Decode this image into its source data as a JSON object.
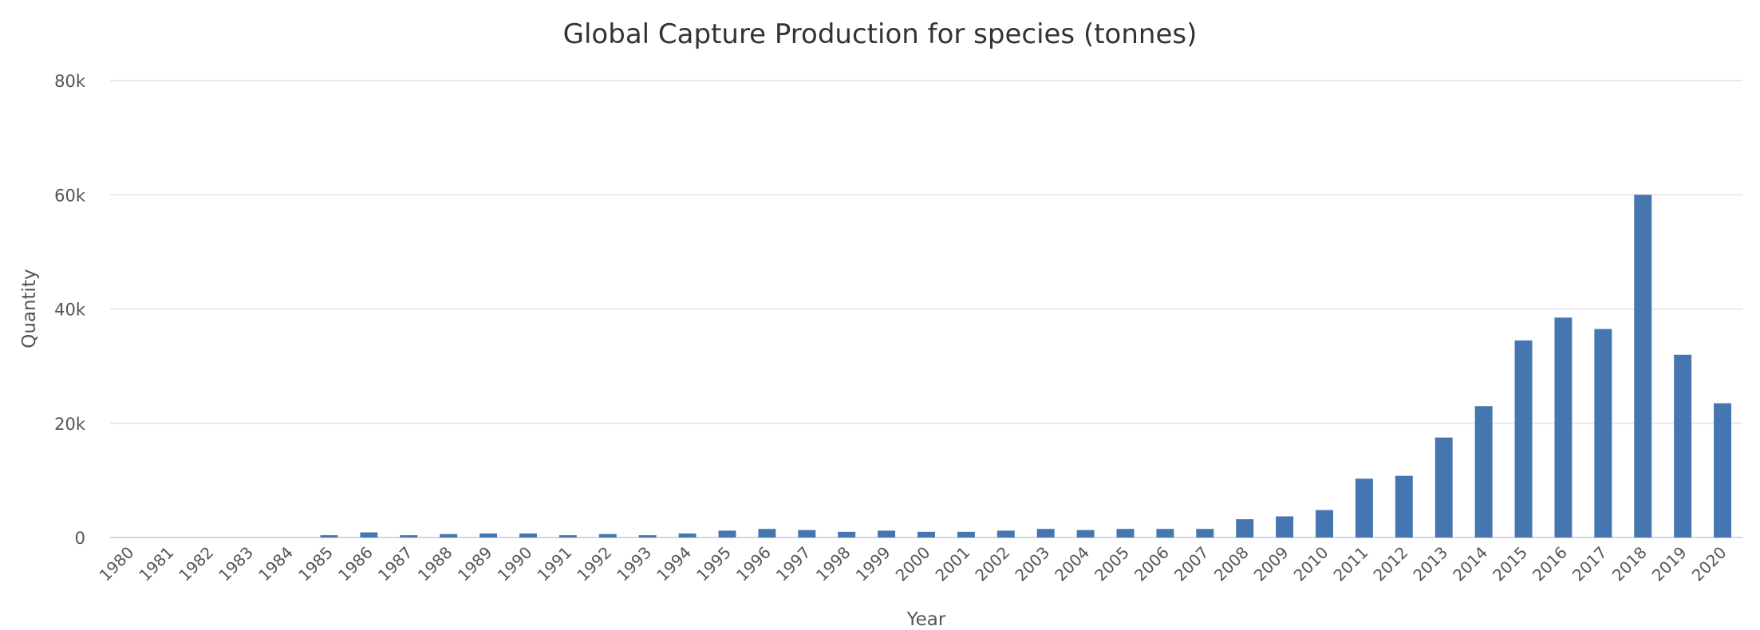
{
  "chart_data": {
    "type": "bar",
    "title": "Global Capture Production for species (tonnes)",
    "xlabel": "Year",
    "ylabel": "Quantity",
    "ylim": [
      0,
      80000
    ],
    "yticks": [
      0,
      20000,
      40000,
      60000,
      80000
    ],
    "ytick_labels": [
      "0",
      "20k",
      "40k",
      "60k",
      "80k"
    ],
    "grid": true,
    "legend": "none",
    "bar_color": "#4576b0",
    "categories": [
      "1980",
      "1981",
      "1982",
      "1983",
      "1984",
      "1985",
      "1986",
      "1987",
      "1988",
      "1989",
      "1990",
      "1991",
      "1992",
      "1993",
      "1994",
      "1995",
      "1996",
      "1997",
      "1998",
      "1999",
      "2000",
      "2001",
      "2002",
      "2003",
      "2004",
      "2005",
      "2006",
      "2007",
      "2008",
      "2009",
      "2010",
      "2011",
      "2012",
      "2013",
      "2014",
      "2015",
      "2016",
      "2017",
      "2018",
      "2019",
      "2020"
    ],
    "values": [
      0,
      0,
      0,
      0,
      0,
      400,
      900,
      400,
      600,
      700,
      700,
      400,
      600,
      400,
      700,
      1200,
      1500,
      1300,
      1000,
      1200,
      1000,
      1000,
      1200,
      1500,
      1300,
      1500,
      1500,
      1500,
      3200,
      3700,
      4800,
      10300,
      10800,
      17500,
      23000,
      34500,
      38500,
      36500,
      60000,
      32000,
      23500
    ]
  }
}
